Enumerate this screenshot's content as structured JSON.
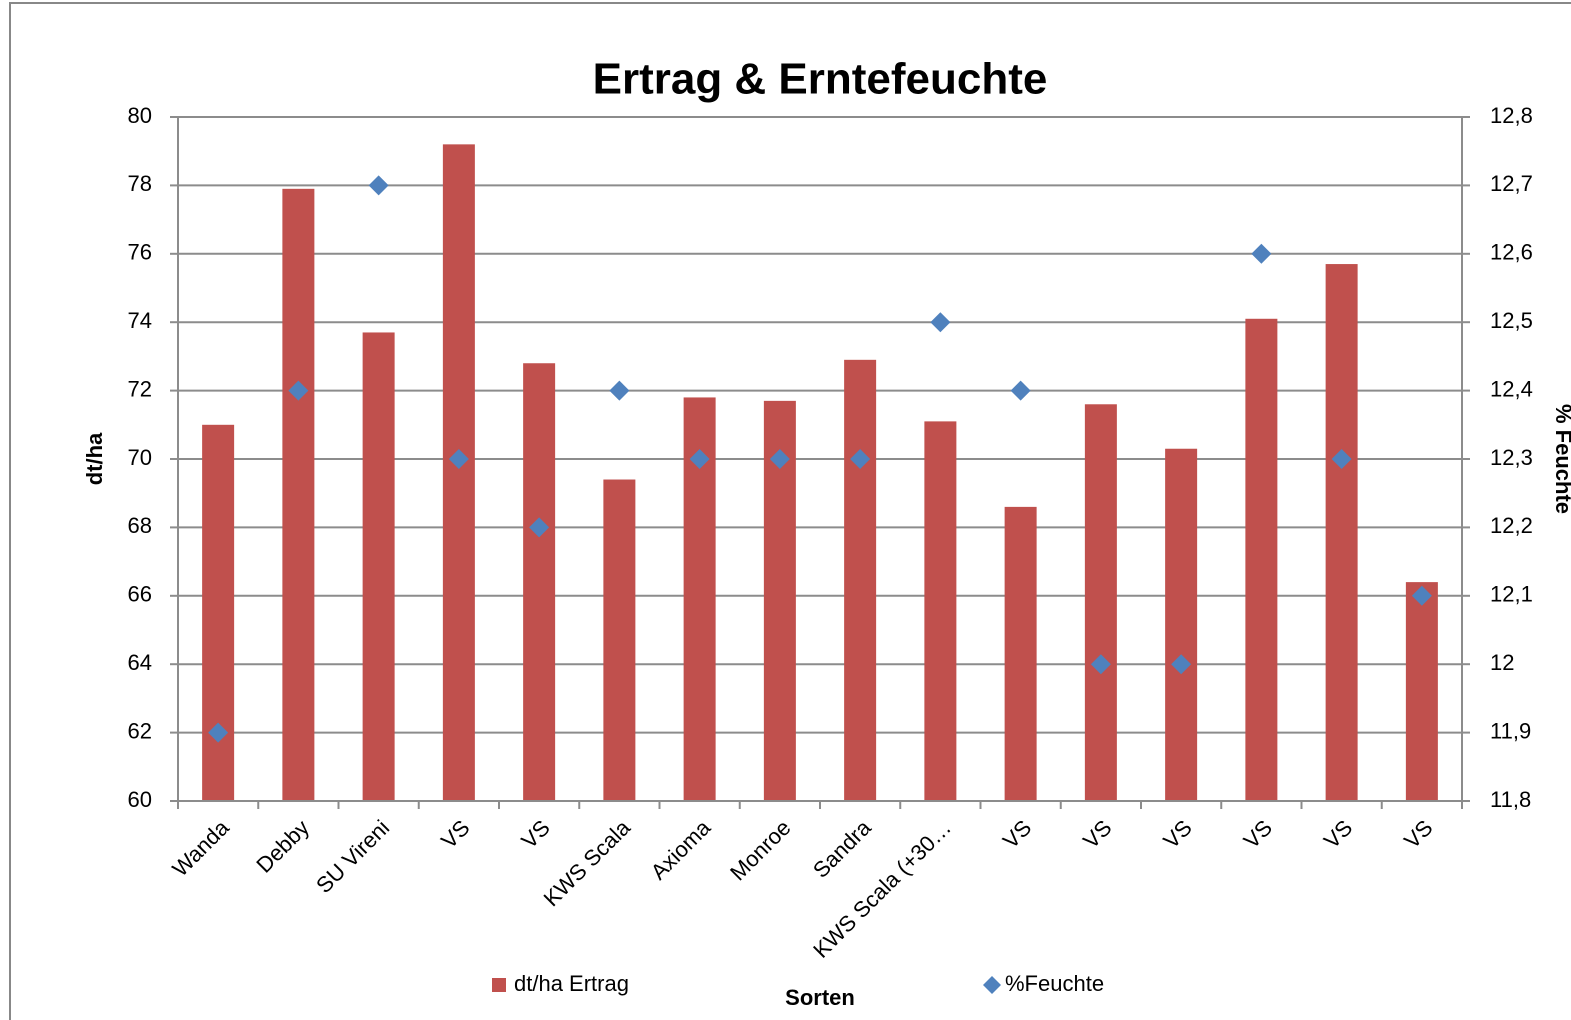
{
  "chart_data": {
    "type": "bar",
    "title": "Ertrag & Erntefeuchte",
    "x_label": "Sorten",
    "y_label": "dt/ha",
    "y2_label": "% Feuchte",
    "categories": [
      "Wanda",
      "Debby",
      "SU Vireni",
      "VS",
      "VS",
      "KWS Scala",
      "Axioma",
      "Monroe",
      "Sandra",
      "KWS Scala (+30…",
      "VS",
      "VS",
      "VS",
      "VS",
      "VS",
      "VS"
    ],
    "series": [
      {
        "name": "dt/ha Ertrag",
        "color": "#c0504d",
        "type": "bar",
        "values": [
          71.0,
          77.9,
          73.7,
          79.2,
          72.8,
          69.4,
          71.8,
          71.7,
          72.9,
          71.1,
          68.6,
          71.6,
          70.3,
          74.1,
          75.7,
          66.4
        ]
      },
      {
        "name": "%Feuchte",
        "color": "#4f81bd",
        "type": "scatter",
        "axis": "y2",
        "values": [
          11.9,
          12.4,
          12.7,
          12.3,
          12.2,
          12.4,
          12.3,
          12.3,
          12.3,
          12.5,
          12.4,
          12.0,
          12.0,
          12.6,
          12.3,
          12.1
        ]
      }
    ],
    "ylim": [
      60,
      80
    ],
    "yticks": [
      60,
      62,
      64,
      66,
      68,
      70,
      72,
      74,
      76,
      78,
      80
    ],
    "y2lim": [
      11.8,
      12.8
    ],
    "y2ticks": [
      {
        "value": 11.8,
        "label": "11,8"
      },
      {
        "value": 11.9,
        "label": "11,9"
      },
      12,
      {
        "value": 12.1,
        "label": "12,1"
      },
      {
        "value": 12.2,
        "label": "12,2"
      },
      {
        "value": 12.3,
        "label": "12,3"
      },
      {
        "value": 12.4,
        "label": "12,4"
      },
      {
        "value": 12.5,
        "label": "12,5"
      },
      {
        "value": 12.6,
        "label": "12,6"
      },
      {
        "value": 12.7,
        "label": "12,7"
      },
      {
        "value": 12.8,
        "label": "12,8"
      }
    ],
    "grid": true,
    "legend": "bottom"
  }
}
